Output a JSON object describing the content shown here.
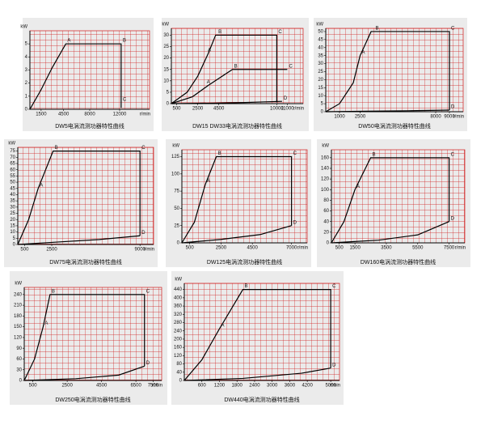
{
  "chart_data": [
    {
      "type": "line",
      "title": "DW5电涡流测功器特性曲线",
      "ylabel": "kW",
      "xlabel": "r/min",
      "grid": true,
      "xlim": [
        0,
        16000
      ],
      "ylim": [
        0,
        6
      ],
      "xticks": [
        1500,
        4500,
        8000,
        12000
      ],
      "yticks": [
        0,
        1,
        2,
        3,
        4,
        5
      ],
      "series": [
        {
          "color": "#000000",
          "x": [
            0,
            1500,
            3000,
            4800,
            12200,
            12200
          ],
          "values": [
            0,
            1.5,
            3.2,
            5,
            5,
            0.1
          ]
        }
      ],
      "annotations": [
        {
          "text": "A",
          "x": 4800,
          "y": 5
        },
        {
          "text": "B",
          "x": 12200,
          "y": 5
        },
        {
          "text": "C",
          "x": 12200,
          "y": 0.5
        }
      ]
    },
    {
      "type": "line",
      "title": "DW15 DW33电涡流测功器特性曲线",
      "ylabel": "kW",
      "xlabel": "r/min",
      "grid": true,
      "xlim": [
        0,
        12500
      ],
      "ylim": [
        0,
        33
      ],
      "xticks": [
        500,
        2500,
        4500,
        10000,
        11000
      ],
      "yticks": [
        0,
        5,
        10,
        15,
        20,
        25,
        30
      ],
      "series": [
        {
          "color": "#000000",
          "x": [
            0,
            1500,
            2500,
            3500,
            4200,
            10000,
            10000
          ],
          "values": [
            0,
            5,
            12,
            22,
            30,
            30,
            0.5
          ]
        },
        {
          "color": "#000000",
          "x": [
            0,
            2000,
            3500,
            5800,
            11000
          ],
          "values": [
            0,
            3,
            8,
            15,
            15
          ]
        },
        {
          "color": "#000000",
          "x": [
            0,
            4000,
            7000,
            10500
          ],
          "values": [
            0,
            0.2,
            0.5,
            1
          ]
        }
      ],
      "annotations": [
        {
          "text": "A",
          "x": 3300,
          "y": 22
        },
        {
          "text": "B",
          "x": 4300,
          "y": 30
        },
        {
          "text": "C",
          "x": 10000,
          "y": 30
        },
        {
          "text": "A",
          "x": 3200,
          "y": 8
        },
        {
          "text": "B",
          "x": 5800,
          "y": 15
        },
        {
          "text": "C",
          "x": 11000,
          "y": 15
        },
        {
          "text": "D",
          "x": 10500,
          "y": 1
        }
      ]
    },
    {
      "type": "line",
      "title": "DW50电涡流测功器特性曲线",
      "ylabel": "kW",
      "xlabel": "r/min",
      "grid": true,
      "xlim": [
        0,
        10000
      ],
      "ylim": [
        0,
        52
      ],
      "xticks": [
        1000,
        2500,
        8000,
        9000
      ],
      "yticks": [
        0,
        5,
        10,
        15,
        20,
        25,
        30,
        35,
        40,
        45,
        50
      ],
      "series": [
        {
          "color": "#000000",
          "x": [
            0,
            1000,
            2000,
            2500,
            3300,
            9000,
            9000
          ],
          "values": [
            0,
            5,
            18,
            35,
            50,
            50,
            1
          ]
        },
        {
          "color": "#000000",
          "x": [
            0,
            3000,
            6000,
            9000
          ],
          "values": [
            0,
            0.3,
            0.6,
            1
          ]
        }
      ],
      "annotations": [
        {
          "text": "A",
          "x": 2500,
          "y": 35
        },
        {
          "text": "B",
          "x": 3500,
          "y": 50
        },
        {
          "text": "C",
          "x": 9000,
          "y": 50
        },
        {
          "text": "D",
          "x": 9000,
          "y": 1
        }
      ]
    },
    {
      "type": "line",
      "title": "DW75电涡流测功器特性曲线",
      "ylabel": "kW",
      "xlabel": "r/min",
      "grid": true,
      "xlim": [
        0,
        10000
      ],
      "ylim": [
        0,
        78
      ],
      "xticks": [
        500,
        2500,
        9000
      ],
      "yticks": [
        0,
        5,
        10,
        15,
        20,
        25,
        30,
        35,
        40,
        45,
        50,
        55,
        60,
        65,
        70,
        75
      ],
      "series": [
        {
          "color": "#000000",
          "x": [
            0,
            800,
            1500,
            2600,
            9000,
            9000
          ],
          "values": [
            0,
            20,
            45,
            75,
            75,
            7
          ]
        },
        {
          "color": "#000000",
          "x": [
            0,
            3000,
            6000,
            9000
          ],
          "values": [
            0,
            2,
            4,
            7
          ]
        }
      ],
      "annotations": [
        {
          "text": "A",
          "x": 1500,
          "y": 45
        },
        {
          "text": "B",
          "x": 2600,
          "y": 75
        },
        {
          "text": "C",
          "x": 9000,
          "y": 75
        },
        {
          "text": "D",
          "x": 9000,
          "y": 7
        }
      ]
    },
    {
      "type": "line",
      "title": "DW125电涡流测功器特性曲线",
      "ylabel": "kW",
      "xlabel": "r/min",
      "grid": true,
      "xlim": [
        0,
        8000
      ],
      "ylim": [
        0,
        135
      ],
      "xticks": [
        500,
        2500,
        4500,
        7000
      ],
      "yticks": [
        0,
        25,
        50,
        75,
        100,
        125
      ],
      "series": [
        {
          "color": "#000000",
          "x": [
            0,
            800,
            1500,
            2200,
            7000,
            7000
          ],
          "values": [
            0,
            30,
            85,
            125,
            125,
            25
          ]
        },
        {
          "color": "#000000",
          "x": [
            0,
            2500,
            5000,
            7000
          ],
          "values": [
            0,
            5,
            12,
            25
          ]
        }
      ],
      "annotations": [
        {
          "text": "A",
          "x": 1500,
          "y": 85
        },
        {
          "text": "B",
          "x": 2200,
          "y": 125
        },
        {
          "text": "C",
          "x": 7000,
          "y": 125
        },
        {
          "text": "D",
          "x": 7000,
          "y": 25
        }
      ]
    },
    {
      "type": "line",
      "title": "DW160电涡流测功器特性曲线",
      "ylabel": "kW",
      "xlabel": "r/min",
      "grid": true,
      "xlim": [
        0,
        8500
      ],
      "ylim": [
        0,
        175
      ],
      "xticks": [
        500,
        1500,
        3500,
        5500,
        7500
      ],
      "yticks": [
        0,
        20,
        40,
        60,
        80,
        100,
        120,
        140,
        160
      ],
      "series": [
        {
          "color": "#000000",
          "x": [
            0,
            800,
            1500,
            2500,
            7500,
            7500
          ],
          "values": [
            0,
            40,
            100,
            160,
            160,
            40
          ]
        },
        {
          "color": "#000000",
          "x": [
            0,
            3000,
            5500,
            7500
          ],
          "values": [
            0,
            5,
            15,
            40
          ]
        }
      ],
      "annotations": [
        {
          "text": "A",
          "x": 1500,
          "y": 100
        },
        {
          "text": "B",
          "x": 2500,
          "y": 160
        },
        {
          "text": "C",
          "x": 7500,
          "y": 160
        },
        {
          "text": "D",
          "x": 7500,
          "y": 40
        }
      ]
    },
    {
      "type": "line",
      "title": "DW250电涡流测功器特性曲线",
      "ylabel": "kW",
      "xlabel": "r/min",
      "grid": true,
      "xlim": [
        0,
        8000
      ],
      "ylim": [
        0,
        260
      ],
      "xticks": [
        500,
        2500,
        4500,
        6500,
        7500
      ],
      "yticks": [
        0,
        30,
        60,
        90,
        120,
        150,
        180,
        210,
        240
      ],
      "series": [
        {
          "color": "#000000",
          "x": [
            0,
            600,
            1100,
            1500,
            7000,
            7000
          ],
          "values": [
            0,
            60,
            150,
            240,
            240,
            40
          ]
        },
        {
          "color": "#000000",
          "x": [
            0,
            3000,
            5500,
            7000
          ],
          "values": [
            0,
            5,
            15,
            40
          ]
        }
      ],
      "annotations": [
        {
          "text": "A",
          "x": 1100,
          "y": 150
        },
        {
          "text": "B",
          "x": 1500,
          "y": 240
        },
        {
          "text": "C",
          "x": 7000,
          "y": 240
        },
        {
          "text": "D",
          "x": 7000,
          "y": 40
        }
      ]
    },
    {
      "type": "line",
      "title": "DW440电涡流测功器特性曲线",
      "ylabel": "kW",
      "xlabel": "r/min",
      "grid": true,
      "xlim": [
        0,
        5300
      ],
      "ylim": [
        0,
        470
      ],
      "xticks": [
        600,
        1200,
        1800,
        2400,
        3000,
        3600,
        4200,
        5000
      ],
      "yticks": [
        0,
        40,
        80,
        120,
        160,
        200,
        240,
        280,
        320,
        360,
        400,
        440
      ],
      "series": [
        {
          "color": "#000000",
          "x": [
            0,
            600,
            1200,
            2000,
            5000,
            5000
          ],
          "values": [
            0,
            100,
            250,
            440,
            440,
            60
          ]
        },
        {
          "color": "#000000",
          "x": [
            0,
            2000,
            4000,
            5000
          ],
          "values": [
            0,
            10,
            35,
            60
          ]
        }
      ],
      "annotations": [
        {
          "text": "A",
          "x": 1200,
          "y": 250
        },
        {
          "text": "B",
          "x": 2000,
          "y": 440
        },
        {
          "text": "C",
          "x": 5000,
          "y": 440
        },
        {
          "text": "D",
          "x": 5000,
          "y": 60
        }
      ]
    }
  ]
}
